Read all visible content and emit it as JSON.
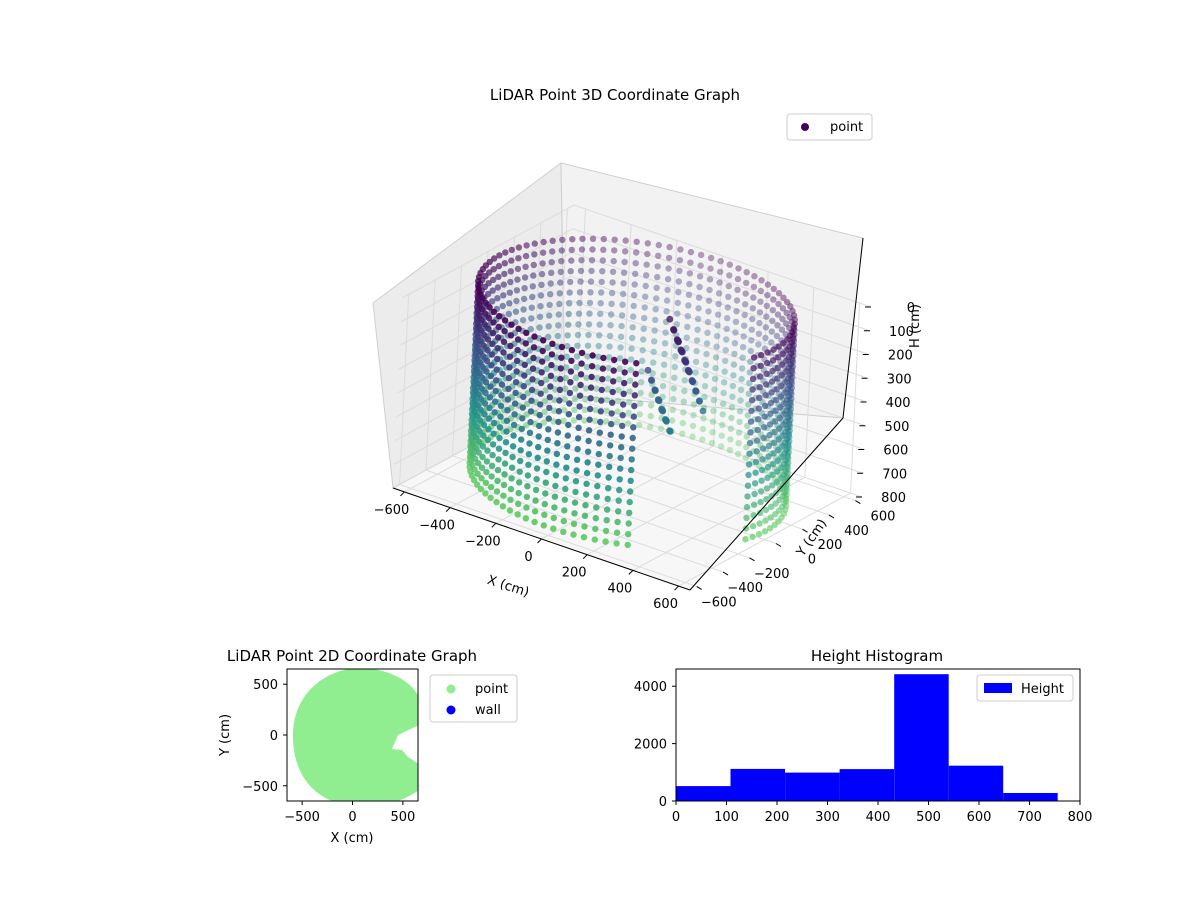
{
  "chart_data": [
    {
      "type": "scatter3d",
      "title": "LiDAR Point 3D Coordinate Graph",
      "xlabel": "X (cm)",
      "ylabel": "Y (cm)",
      "zlabel": "H (cm)",
      "xlim": [
        -650,
        650
      ],
      "ylim": [
        -650,
        650
      ],
      "zlim": [
        800,
        0
      ],
      "xticks": [
        -600,
        -400,
        -200,
        0,
        200,
        400,
        600
      ],
      "yticks": [
        -600,
        -400,
        -200,
        0,
        200,
        400,
        600
      ],
      "zticks": [
        0,
        100,
        200,
        300,
        400,
        500,
        600,
        700,
        800
      ],
      "legend": [
        "point"
      ],
      "legend_position": "top-right",
      "colormap": "viridis",
      "grid": true,
      "marker_color": "#440154"
    },
    {
      "type": "scatter",
      "title": "LiDAR Point 2D Coordinate Graph",
      "xlabel": "X (cm)",
      "ylabel": "Y (cm)",
      "xlim": [
        -650,
        650
      ],
      "ylim": [
        -650,
        650
      ],
      "xticks": [
        -500,
        0,
        500
      ],
      "yticks": [
        -500,
        0,
        500
      ],
      "series": [
        {
          "name": "point",
          "color": "#90ee90"
        },
        {
          "name": "wall",
          "color": "#0000ff"
        }
      ],
      "legend_position": "outside-right",
      "grid": false
    },
    {
      "type": "histogram",
      "title": "Height Histogram",
      "xlim": [
        0,
        800
      ],
      "ylim": [
        0,
        4600
      ],
      "xticks": [
        0,
        100,
        200,
        300,
        400,
        500,
        600,
        700,
        800
      ],
      "yticks": [
        0,
        2000,
        4000
      ],
      "bins": [
        {
          "start": 0,
          "end": 108,
          "count": 520
        },
        {
          "start": 108,
          "end": 216,
          "count": 1120
        },
        {
          "start": 216,
          "end": 324,
          "count": 990
        },
        {
          "start": 324,
          "end": 432,
          "count": 1110
        },
        {
          "start": 432,
          "end": 540,
          "count": 4420
        },
        {
          "start": 540,
          "end": 648,
          "count": 1230
        },
        {
          "start": 648,
          "end": 756,
          "count": 280
        }
      ],
      "series": [
        {
          "name": "Height",
          "color": "#0000ff"
        }
      ],
      "legend_position": "top-right",
      "grid": false
    }
  ]
}
